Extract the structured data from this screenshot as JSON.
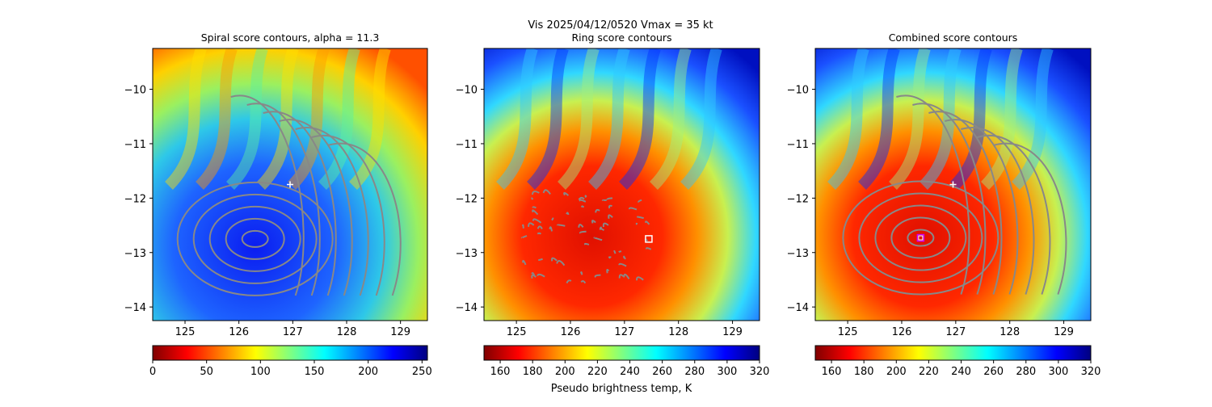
{
  "figure": {
    "suptitle_line1": "Vis  2025/04/12/0520    Vmax = 35 kt",
    "colorbar_label": "Pseudo brightness temp, K"
  },
  "chart_data": [
    {
      "type": "heatmap",
      "title": "Spiral score contours, alpha = 11.3",
      "xlim": [
        124.4,
        129.5
      ],
      "ylim": [
        -14.25,
        -9.25
      ],
      "x_ticks": [
        125,
        126,
        127,
        128,
        129
      ],
      "y_ticks": [
        -10,
        -11,
        -12,
        -13,
        -14
      ],
      "color_scale": "jet_reversed",
      "background_center": [
        126.3,
        -12.9
      ],
      "contour_center": [
        126.3,
        -12.75
      ],
      "marker": {
        "symbol": "plus",
        "x": 126.95,
        "y": -11.75,
        "color": "#ffffff"
      },
      "colorbar": {
        "min": 0,
        "max": 255,
        "ticks": [
          0,
          50,
          100,
          150,
          200,
          250
        ]
      }
    },
    {
      "type": "heatmap",
      "title": "Ring score contours",
      "xlim": [
        124.4,
        129.5
      ],
      "ylim": [
        -14.25,
        -9.25
      ],
      "x_ticks": [
        125,
        126,
        127,
        128,
        129
      ],
      "y_ticks": [
        -10,
        -11,
        -12,
        -13,
        -14
      ],
      "color_scale": "jet_reversed",
      "background_center": [
        126.4,
        -12.7
      ],
      "contour_region": {
        "x": [
          125.1,
          127.5
        ],
        "y": [
          -13.6,
          -11.9
        ]
      },
      "marker": {
        "symbol": "square",
        "x": 127.45,
        "y": -12.75,
        "color": "#ffffff"
      },
      "colorbar": {
        "min": 150,
        "max": 320,
        "ticks": [
          160,
          180,
          200,
          220,
          240,
          260,
          280,
          300,
          320
        ]
      }
    },
    {
      "type": "heatmap",
      "title": "Combined score contours",
      "xlim": [
        124.4,
        129.5
      ],
      "ylim": [
        -14.25,
        -9.25
      ],
      "x_ticks": [
        125,
        126,
        127,
        128,
        129
      ],
      "y_ticks": [
        -10,
        -11,
        -12,
        -13,
        -14
      ],
      "color_scale": "jet_reversed",
      "background_center": [
        126.4,
        -12.7
      ],
      "contour_center": [
        126.35,
        -12.73
      ],
      "marker": {
        "symbol": "plus",
        "x": 126.95,
        "y": -11.75,
        "color": "#ffffff"
      },
      "marker2": {
        "symbol": "square",
        "x": 126.35,
        "y": -12.73,
        "color": "#ffffff",
        "edge": "#cc00ff"
      },
      "colorbar": {
        "min": 150,
        "max": 320,
        "ticks": [
          160,
          180,
          200,
          220,
          240,
          260,
          280,
          300,
          320
        ]
      }
    }
  ]
}
